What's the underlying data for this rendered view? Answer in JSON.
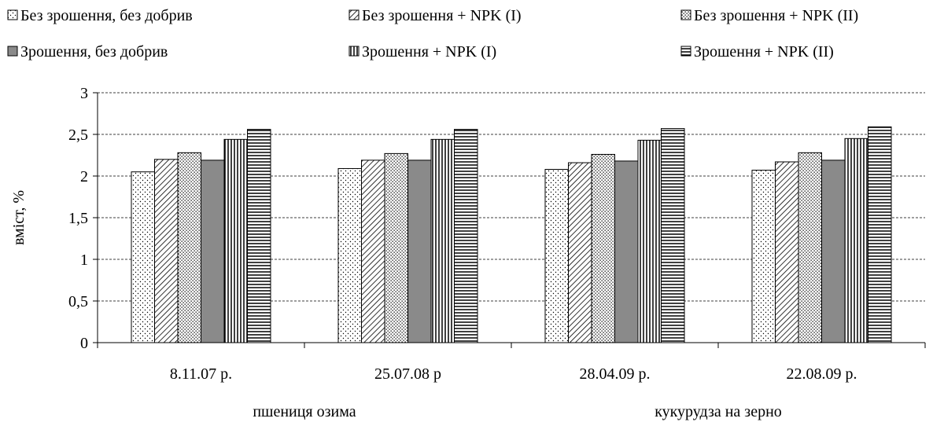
{
  "chart_data": {
    "type": "bar",
    "title": "",
    "xlabel": "",
    "ylabel": "вміст, %",
    "ylim": [
      0,
      3
    ],
    "yticks": [
      0,
      0.5,
      1,
      1.5,
      2,
      2.5,
      3
    ],
    "ytick_labels": [
      "0",
      "0,5",
      "1",
      "1,5",
      "2",
      "2,5",
      "3"
    ],
    "grid": true,
    "legend_position": "top",
    "categories": [
      "8.11.07 р.",
      "25.07.08 р",
      "28.04.09 р.",
      "22.08.09 р."
    ],
    "groups": [
      {
        "label": "пшениця озима",
        "categories": [
          0,
          1
        ]
      },
      {
        "label": "кукурудза на зерно",
        "categories": [
          2,
          3
        ]
      }
    ],
    "series": [
      {
        "name": "Без зрошення, без добрив",
        "pattern": "dots-sparse",
        "values": [
          2.05,
          2.09,
          2.08,
          2.07
        ]
      },
      {
        "name": "Без зрошення + NPK (I)",
        "pattern": "diagonal",
        "values": [
          2.2,
          2.19,
          2.16,
          2.17
        ]
      },
      {
        "name": "Без зрошення + NPK (II)",
        "pattern": "dots-dense",
        "values": [
          2.28,
          2.27,
          2.26,
          2.28
        ]
      },
      {
        "name": "Зрошення, без добрив",
        "pattern": "solid-gray",
        "values": [
          2.19,
          2.19,
          2.18,
          2.19
        ]
      },
      {
        "name": "Зрошення + NPK (I)",
        "pattern": "vertical",
        "values": [
          2.44,
          2.44,
          2.43,
          2.45
        ]
      },
      {
        "name": "Зрошення + NPK (II)",
        "pattern": "horizontal",
        "values": [
          2.56,
          2.56,
          2.57,
          2.59
        ]
      }
    ]
  }
}
